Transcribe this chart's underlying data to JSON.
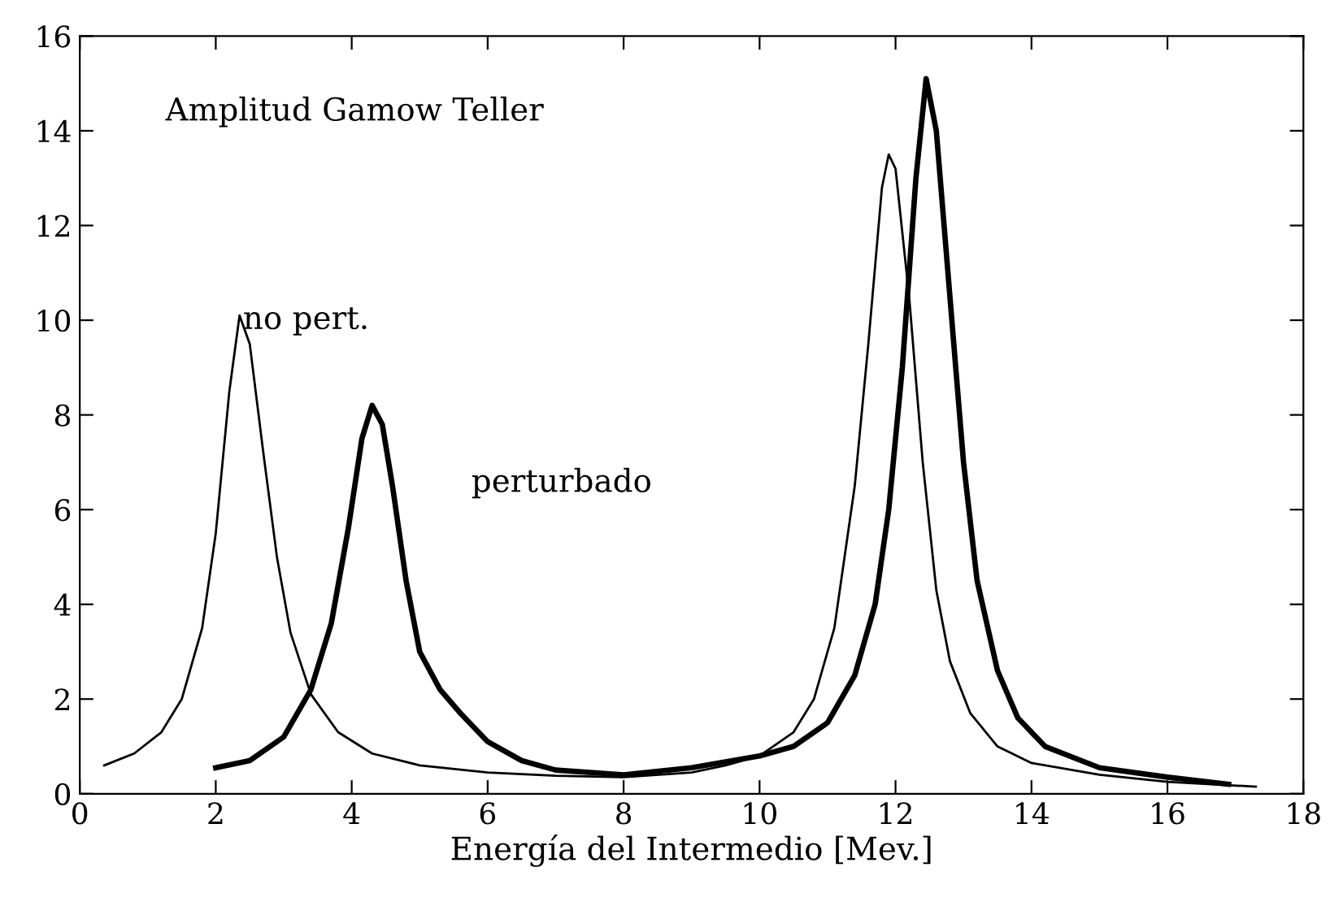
{
  "chart_data": {
    "type": "line",
    "xlabel": "Energía del Intermedio [Mev.]",
    "xlim": [
      0,
      18
    ],
    "xticks": [
      0,
      2,
      4,
      6,
      8,
      10,
      12,
      14,
      16,
      18
    ],
    "ylim": [
      0,
      16
    ],
    "yticks": [
      0,
      2,
      4,
      6,
      8,
      10,
      12,
      14,
      16
    ],
    "grid": false,
    "legend": false,
    "marker": "none",
    "line_style": "solid",
    "annotations": [
      "Amplitud Gamow Teller",
      {
        "text": "no pert.",
        "x": 2.4,
        "y": 10.0
      },
      "perturbado"
    ],
    "series": [
      {
        "color": "#000000",
        "x": [
          0.36,
          0.8,
          1.2,
          1.5,
          1.8,
          2.0,
          2.2,
          2.35,
          2.5,
          2.7,
          2.9,
          3.1,
          3.4,
          3.8,
          4.3,
          5,
          6,
          7,
          8,
          9,
          9.5,
          10,
          10.5,
          10.8,
          11.1,
          11.4,
          11.6,
          11.8,
          11.9,
          12.0,
          12.2,
          12.4,
          12.6,
          12.8,
          13.1,
          13.5,
          14,
          15,
          16,
          17.3
        ],
        "values": [
          0.6,
          0.85,
          1.3,
          2.0,
          3.5,
          5.5,
          8.5,
          10.1,
          9.5,
          7.2,
          5.0,
          3.4,
          2.1,
          1.3,
          0.85,
          0.6,
          0.45,
          0.38,
          0.35,
          0.45,
          0.6,
          0.8,
          1.3,
          2.0,
          3.5,
          6.5,
          9.5,
          12.8,
          13.5,
          13.2,
          10.5,
          7.0,
          4.3,
          2.8,
          1.7,
          1.0,
          0.65,
          0.4,
          0.25,
          0.15
        ]
      },
      {
        "color": "#000000",
        "x": [
          2.0,
          2.5,
          3.0,
          3.4,
          3.7,
          3.95,
          4.15,
          4.3,
          4.45,
          4.6,
          4.8,
          5.0,
          5.3,
          5.6,
          6.0,
          6.5,
          7,
          8,
          9,
          10,
          10.5,
          11,
          11.4,
          11.7,
          11.9,
          12.1,
          12.3,
          12.45,
          12.6,
          12.8,
          13.0,
          13.2,
          13.5,
          13.8,
          14.2,
          15,
          16,
          16.9
        ],
        "values": [
          0.55,
          0.7,
          1.2,
          2.2,
          3.6,
          5.6,
          7.5,
          8.2,
          7.8,
          6.5,
          4.5,
          3.0,
          2.2,
          1.7,
          1.1,
          0.7,
          0.5,
          0.4,
          0.55,
          0.8,
          1.0,
          1.5,
          2.5,
          4.0,
          6.0,
          9.0,
          13.0,
          15.1,
          14.0,
          10.5,
          7.0,
          4.5,
          2.6,
          1.6,
          1.0,
          0.55,
          0.35,
          0.2
        ]
      }
    ]
  }
}
